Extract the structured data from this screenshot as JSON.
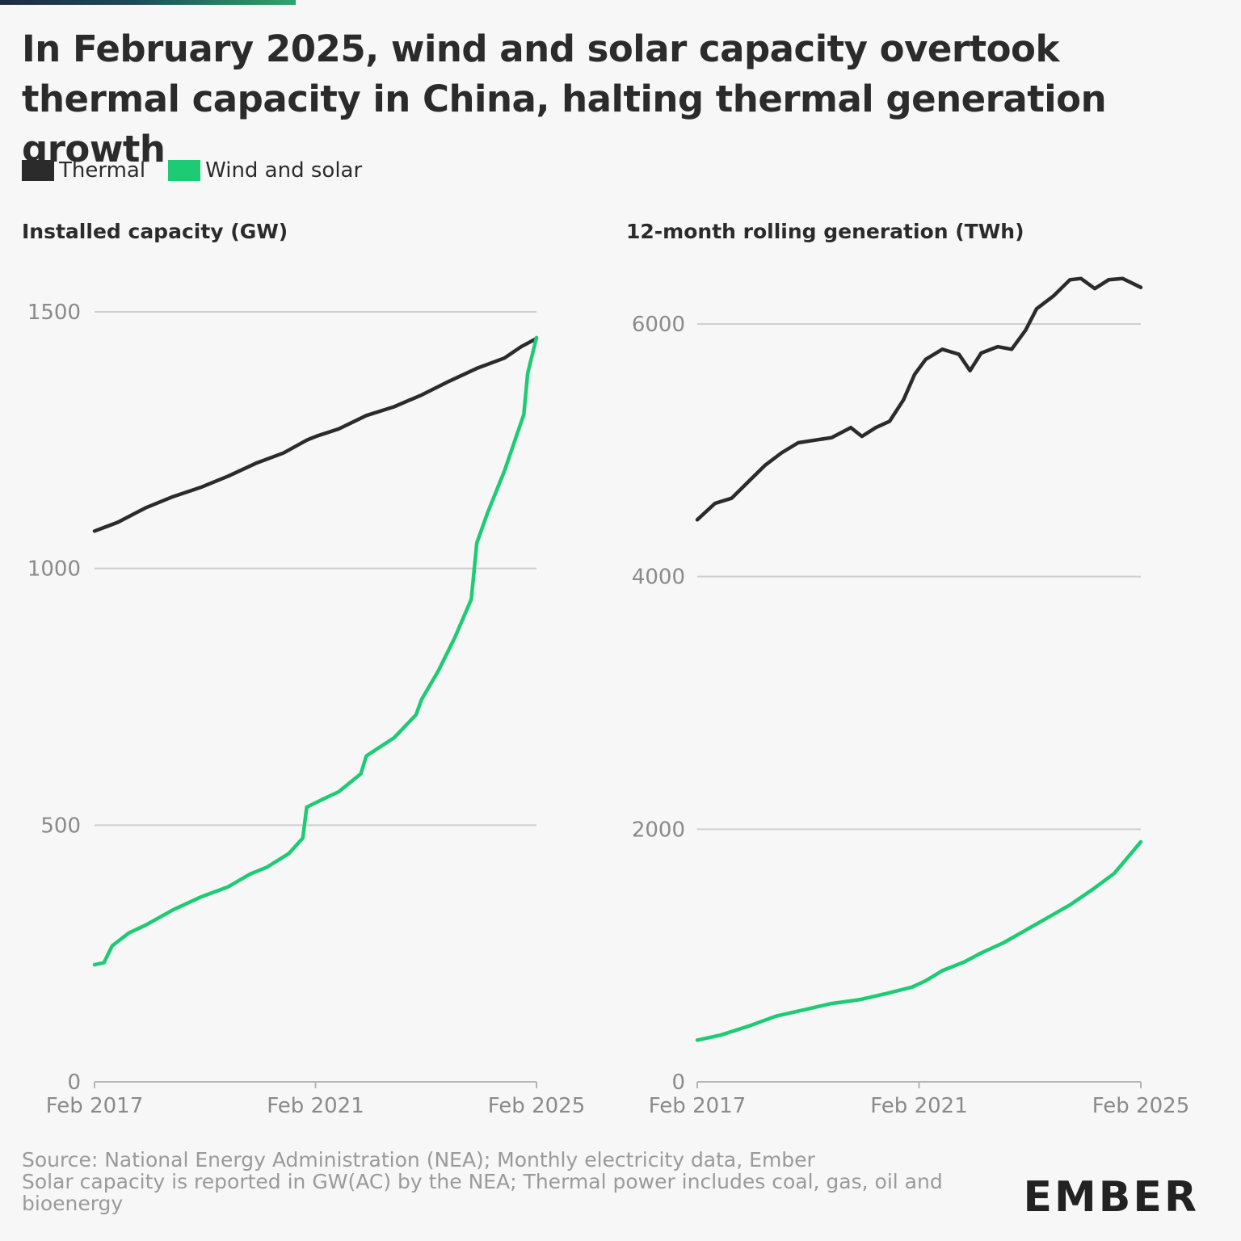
{
  "title": "In February 2025, wind and solar capacity overtook thermal capacity in China, halting thermal generation growth",
  "legend": [
    {
      "label": "Thermal",
      "color": "#2b2b2b"
    },
    {
      "label": "Wind and solar",
      "color": "#1ecb75"
    }
  ],
  "left": {
    "subtitle": "Installed capacity (GW)"
  },
  "right": {
    "subtitle": "12-month rolling generation (TWh)"
  },
  "footer": {
    "line1": "Source: National Energy Administration (NEA); Monthly electricity data, Ember",
    "line2": "Solar capacity is reported in GW(AC) by the NEA; Thermal power includes coal, gas, oil and bioenergy"
  },
  "logo": "EMBER",
  "chart_data": [
    {
      "type": "line",
      "title": "Installed capacity (GW)",
      "xlabel": "",
      "ylabel": "GW",
      "x_range": [
        "Feb 2017",
        "Feb 2025"
      ],
      "xticks": [
        "Feb 2017",
        "Feb 2021",
        "Feb 2025"
      ],
      "yticks": [
        0,
        500,
        1000,
        1500
      ],
      "ylim": [
        0,
        1500
      ],
      "series": [
        {
          "name": "Thermal",
          "color": "#2b2b2b",
          "points": [
            [
              2017.08,
              1073
            ],
            [
              2017.5,
              1090
            ],
            [
              2018.0,
              1118
            ],
            [
              2018.5,
              1140
            ],
            [
              2019.0,
              1158
            ],
            [
              2019.5,
              1180
            ],
            [
              2020.0,
              1205
            ],
            [
              2020.5,
              1225
            ],
            [
              2020.92,
              1250
            ],
            [
              2021.1,
              1258
            ],
            [
              2021.5,
              1272
            ],
            [
              2022.0,
              1298
            ],
            [
              2022.5,
              1315
            ],
            [
              2023.0,
              1338
            ],
            [
              2023.5,
              1365
            ],
            [
              2024.0,
              1390
            ],
            [
              2024.5,
              1410
            ],
            [
              2024.8,
              1432
            ],
            [
              2025.08,
              1448
            ]
          ]
        },
        {
          "name": "Wind and solar",
          "color": "#1ecb75",
          "points": [
            [
              2017.08,
              228
            ],
            [
              2017.25,
              232
            ],
            [
              2017.4,
              265
            ],
            [
              2017.7,
              290
            ],
            [
              2018.0,
              305
            ],
            [
              2018.5,
              335
            ],
            [
              2019.0,
              360
            ],
            [
              2019.5,
              380
            ],
            [
              2019.9,
              405
            ],
            [
              2020.2,
              418
            ],
            [
              2020.6,
              445
            ],
            [
              2020.85,
              475
            ],
            [
              2020.92,
              535
            ],
            [
              2021.2,
              550
            ],
            [
              2021.5,
              565
            ],
            [
              2021.9,
              600
            ],
            [
              2022.0,
              635
            ],
            [
              2022.5,
              670
            ],
            [
              2022.9,
              715
            ],
            [
              2023.0,
              745
            ],
            [
              2023.3,
              800
            ],
            [
              2023.6,
              865
            ],
            [
              2023.9,
              940
            ],
            [
              2024.0,
              1050
            ],
            [
              2024.2,
              1110
            ],
            [
              2024.5,
              1190
            ],
            [
              2024.85,
              1300
            ],
            [
              2024.92,
              1380
            ],
            [
              2025.08,
              1450
            ]
          ]
        }
      ]
    },
    {
      "type": "line",
      "title": "12-month rolling generation (TWh)",
      "xlabel": "",
      "ylabel": "TWh",
      "x_range": [
        "Feb 2017",
        "Feb 2025"
      ],
      "xticks": [
        "Feb 2017",
        "Feb 2021",
        "Feb 2025"
      ],
      "yticks": [
        0,
        2000,
        4000,
        6000
      ],
      "ylim": [
        0,
        6000
      ],
      "series": [
        {
          "name": "Thermal",
          "color": "#2b2b2b",
          "points": [
            [
              2017.08,
              4450
            ],
            [
              2017.4,
              4580
            ],
            [
              2017.7,
              4620
            ],
            [
              2018.0,
              4750
            ],
            [
              2018.3,
              4880
            ],
            [
              2018.6,
              4980
            ],
            [
              2018.9,
              5060
            ],
            [
              2019.2,
              5080
            ],
            [
              2019.5,
              5100
            ],
            [
              2019.85,
              5180
            ],
            [
              2020.05,
              5110
            ],
            [
              2020.3,
              5180
            ],
            [
              2020.55,
              5230
            ],
            [
              2020.8,
              5400
            ],
            [
              2021.0,
              5600
            ],
            [
              2021.2,
              5720
            ],
            [
              2021.5,
              5800
            ],
            [
              2021.8,
              5760
            ],
            [
              2022.0,
              5630
            ],
            [
              2022.2,
              5770
            ],
            [
              2022.5,
              5820
            ],
            [
              2022.75,
              5800
            ],
            [
              2023.0,
              5950
            ],
            [
              2023.2,
              6120
            ],
            [
              2023.5,
              6220
            ],
            [
              2023.8,
              6350
            ],
            [
              2024.0,
              6360
            ],
            [
              2024.25,
              6280
            ],
            [
              2024.5,
              6350
            ],
            [
              2024.75,
              6360
            ],
            [
              2025.08,
              6290
            ]
          ]
        },
        {
          "name": "Wind and solar",
          "color": "#1ecb75",
          "points": [
            [
              2017.08,
              330
            ],
            [
              2017.5,
              370
            ],
            [
              2018.0,
              440
            ],
            [
              2018.5,
              520
            ],
            [
              2019.0,
              570
            ],
            [
              2019.5,
              620
            ],
            [
              2020.0,
              650
            ],
            [
              2020.5,
              700
            ],
            [
              2020.95,
              750
            ],
            [
              2021.2,
              800
            ],
            [
              2021.5,
              880
            ],
            [
              2021.9,
              950
            ],
            [
              2022.2,
              1020
            ],
            [
              2022.6,
              1100
            ],
            [
              2023.0,
              1200
            ],
            [
              2023.4,
              1300
            ],
            [
              2023.8,
              1400
            ],
            [
              2024.2,
              1520
            ],
            [
              2024.6,
              1650
            ],
            [
              2025.08,
              1900
            ]
          ]
        }
      ]
    }
  ]
}
